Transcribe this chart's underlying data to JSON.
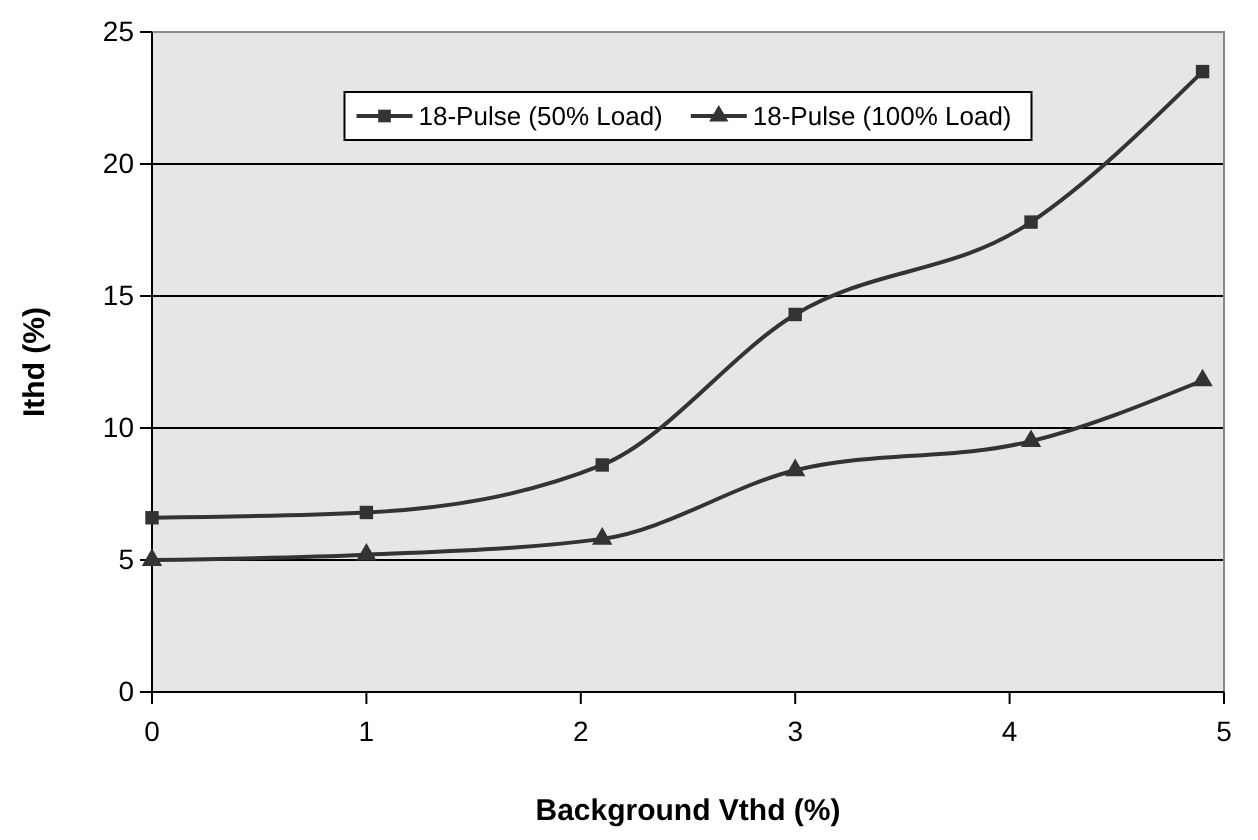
{
  "chart_data": {
    "type": "line",
    "xlabel": "Background Vthd (%)",
    "ylabel": "Ithd (%)",
    "xlim": [
      0,
      5
    ],
    "xticks": [
      0,
      1,
      2,
      3,
      4,
      5
    ],
    "ylim": [
      0,
      25
    ],
    "yticks": [
      0,
      5,
      10,
      15,
      20,
      25
    ],
    "grid": "y",
    "legend": "top",
    "series": [
      {
        "name": "18-Pulse (50% Load)",
        "color": "#333333",
        "marker": "square",
        "x": [
          0,
          1,
          2.1,
          3,
          4.1,
          4.9
        ],
        "values": [
          6.6,
          6.8,
          8.6,
          14.3,
          17.8,
          23.5
        ]
      },
      {
        "name": "18-Pulse (100% Load)",
        "color": "#333333",
        "marker": "triangle",
        "x": [
          0,
          1,
          2.1,
          3,
          4.1,
          4.9
        ],
        "values": [
          5.0,
          5.2,
          5.8,
          8.4,
          9.5,
          11.8
        ]
      }
    ]
  }
}
